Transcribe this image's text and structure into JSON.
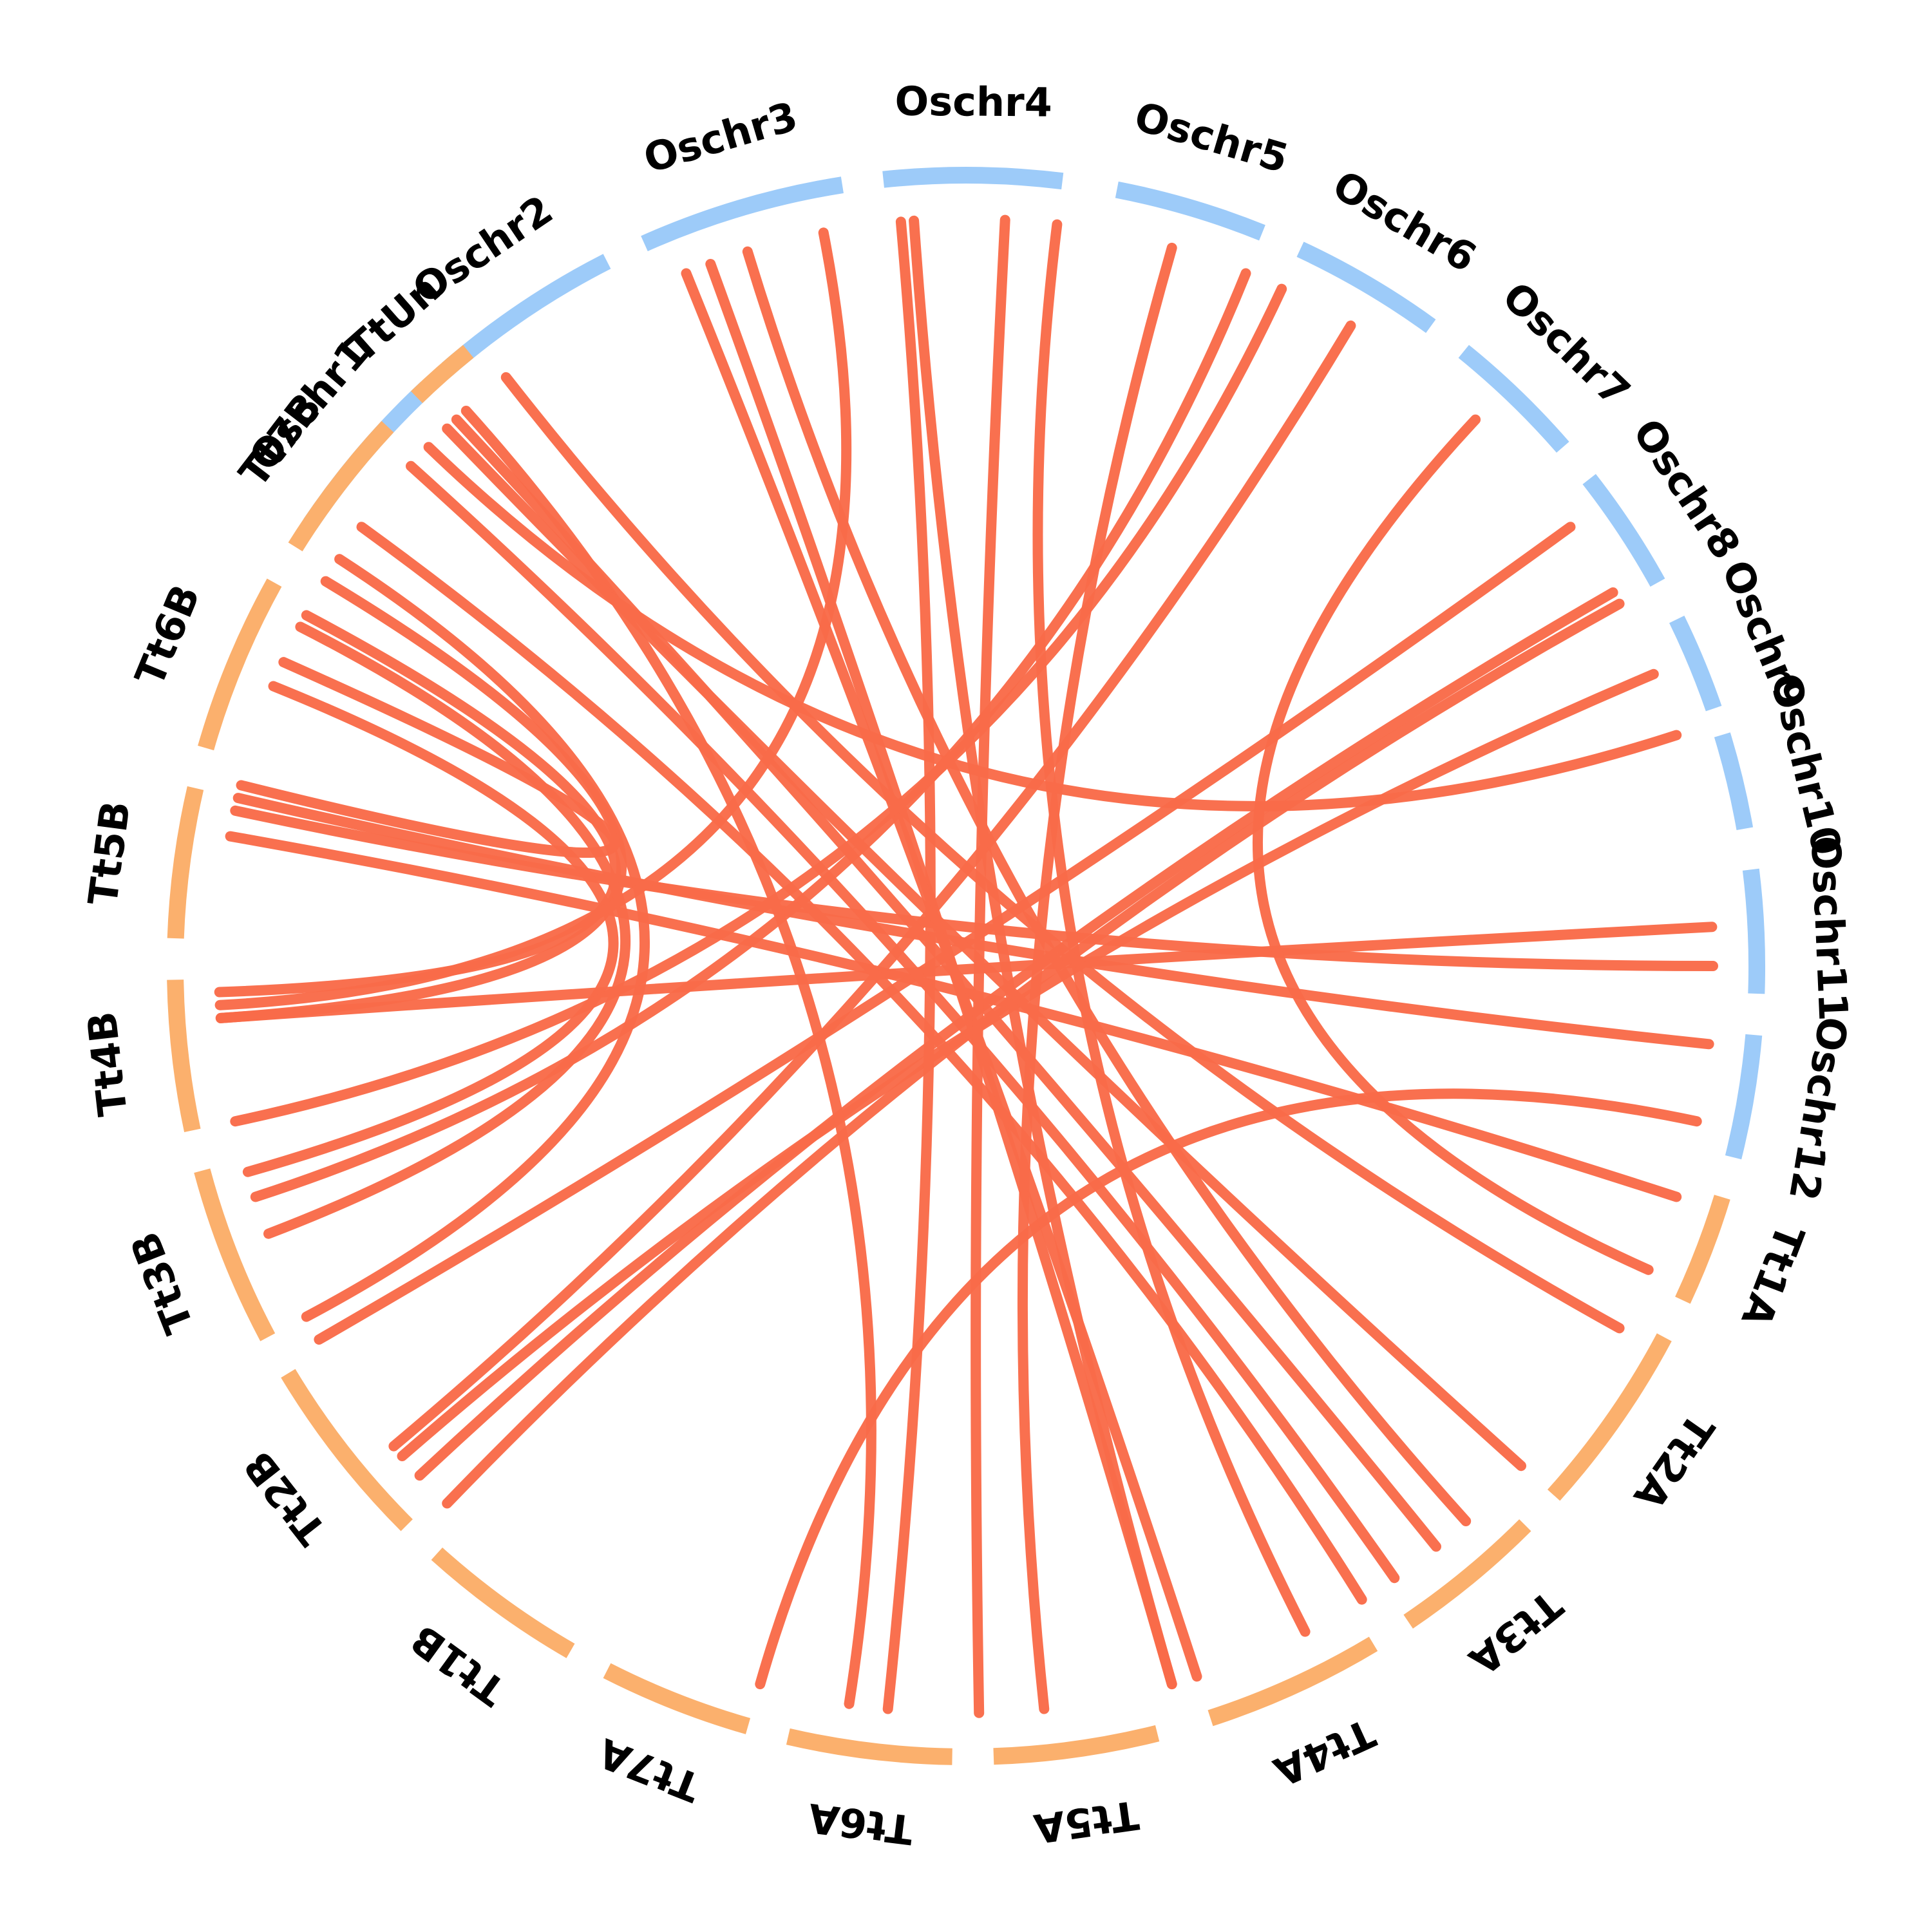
{
  "chart_data": {
    "type": "circos",
    "colors": {
      "rice": "#9dcbf9",
      "wheat": "#fbb06d",
      "link": "#f96b49",
      "text": "#000000"
    },
    "chromosomes": [
      {
        "name": "Oschr1",
        "group": "rice",
        "start": 214,
        "end": 227
      },
      {
        "name": "Oschr2",
        "group": "rice",
        "start": 229,
        "end": 243
      },
      {
        "name": "Oschr3",
        "group": "rice",
        "start": 246,
        "end": 261
      },
      {
        "name": "Oschr4",
        "group": "rice",
        "start": 264,
        "end": 277
      },
      {
        "name": "Oschr5",
        "group": "rice",
        "start": 281,
        "end": 292
      },
      {
        "name": "Oschr6",
        "group": "rice",
        "start": 295,
        "end": 306
      },
      {
        "name": "Oschr7",
        "group": "rice",
        "start": 309,
        "end": 319
      },
      {
        "name": "Oschr8",
        "group": "rice",
        "start": 322,
        "end": 331
      },
      {
        "name": "Oschr9",
        "group": "rice",
        "start": 334,
        "end": 341
      },
      {
        "name": "Oschr10",
        "group": "rice",
        "start": 343,
        "end": 350
      },
      {
        "name": "Oschr11",
        "group": "rice",
        "start": 353,
        "end": 362
      },
      {
        "name": "Oschr12",
        "group": "rice",
        "start": 365,
        "end": 374
      },
      {
        "name": "Tt1A",
        "group": "wheat",
        "start": 377,
        "end": 385
      },
      {
        "name": "Tt2A",
        "group": "wheat",
        "start": 388,
        "end": 402
      },
      {
        "name": "Tt3A",
        "group": "wheat",
        "start": 405,
        "end": 416
      },
      {
        "name": "Tt4A",
        "group": "wheat",
        "start": 419,
        "end": 432
      },
      {
        "name": "Tt5A",
        "group": "wheat",
        "start": 436,
        "end": 448
      },
      {
        "name": "Tt6A",
        "group": "wheat",
        "start": 451,
        "end": 463
      },
      {
        "name": "Tt7A",
        "group": "wheat",
        "start": 466,
        "end": 477
      },
      {
        "name": "Tt1B",
        "group": "wheat",
        "start": 480,
        "end": 492
      },
      {
        "name": "Tt2B",
        "group": "wheat",
        "start": 495,
        "end": 509
      },
      {
        "name": "Tt3B",
        "group": "wheat",
        "start": 512,
        "end": 525
      },
      {
        "name": "Tt4B",
        "group": "wheat",
        "start": 528,
        "end": 539
      },
      {
        "name": "Tt5B",
        "group": "wheat",
        "start": 542,
        "end": 553
      },
      {
        "name": "Tt6B",
        "group": "wheat",
        "start": 556,
        "end": 569
      },
      {
        "name": "Tt7B",
        "group": "wheat",
        "start": 572,
        "end": 583
      },
      {
        "name": "TtUn",
        "group": "wheat",
        "start": 586,
        "end": 591
      }
    ],
    "links": [
      [
        360,
        552
      ],
      [
        366,
        553
      ],
      [
        378,
        550
      ],
      [
        372,
        466
      ],
      [
        357,
        536
      ],
      [
        337,
        499
      ],
      [
        331,
        494
      ],
      [
        330,
        497
      ],
      [
        324,
        510
      ],
      [
        301,
        500
      ],
      [
        292,
        522
      ],
      [
        286,
        444
      ],
      [
        277,
        423
      ],
      [
        266,
        434
      ],
      [
        265,
        456
      ],
      [
        250,
        434
      ],
      [
        248,
        432
      ],
      [
        253,
        408
      ],
      [
        232,
        389
      ],
      [
        228,
        459
      ],
      [
        227,
        411
      ],
      [
        226,
        402
      ],
      [
        222,
        415
      ],
      [
        216,
        418
      ],
      [
        211,
        536
      ],
      [
        208,
        538
      ],
      [
        213,
        512
      ],
      [
        207,
        519
      ],
      [
        202,
        524
      ],
      [
        204,
        554
      ],
      [
        259,
        537
      ],
      [
        273,
        449
      ],
      [
        313,
        384
      ],
      [
        295,
        528
      ],
      [
        342,
        584
      ]
    ]
  }
}
